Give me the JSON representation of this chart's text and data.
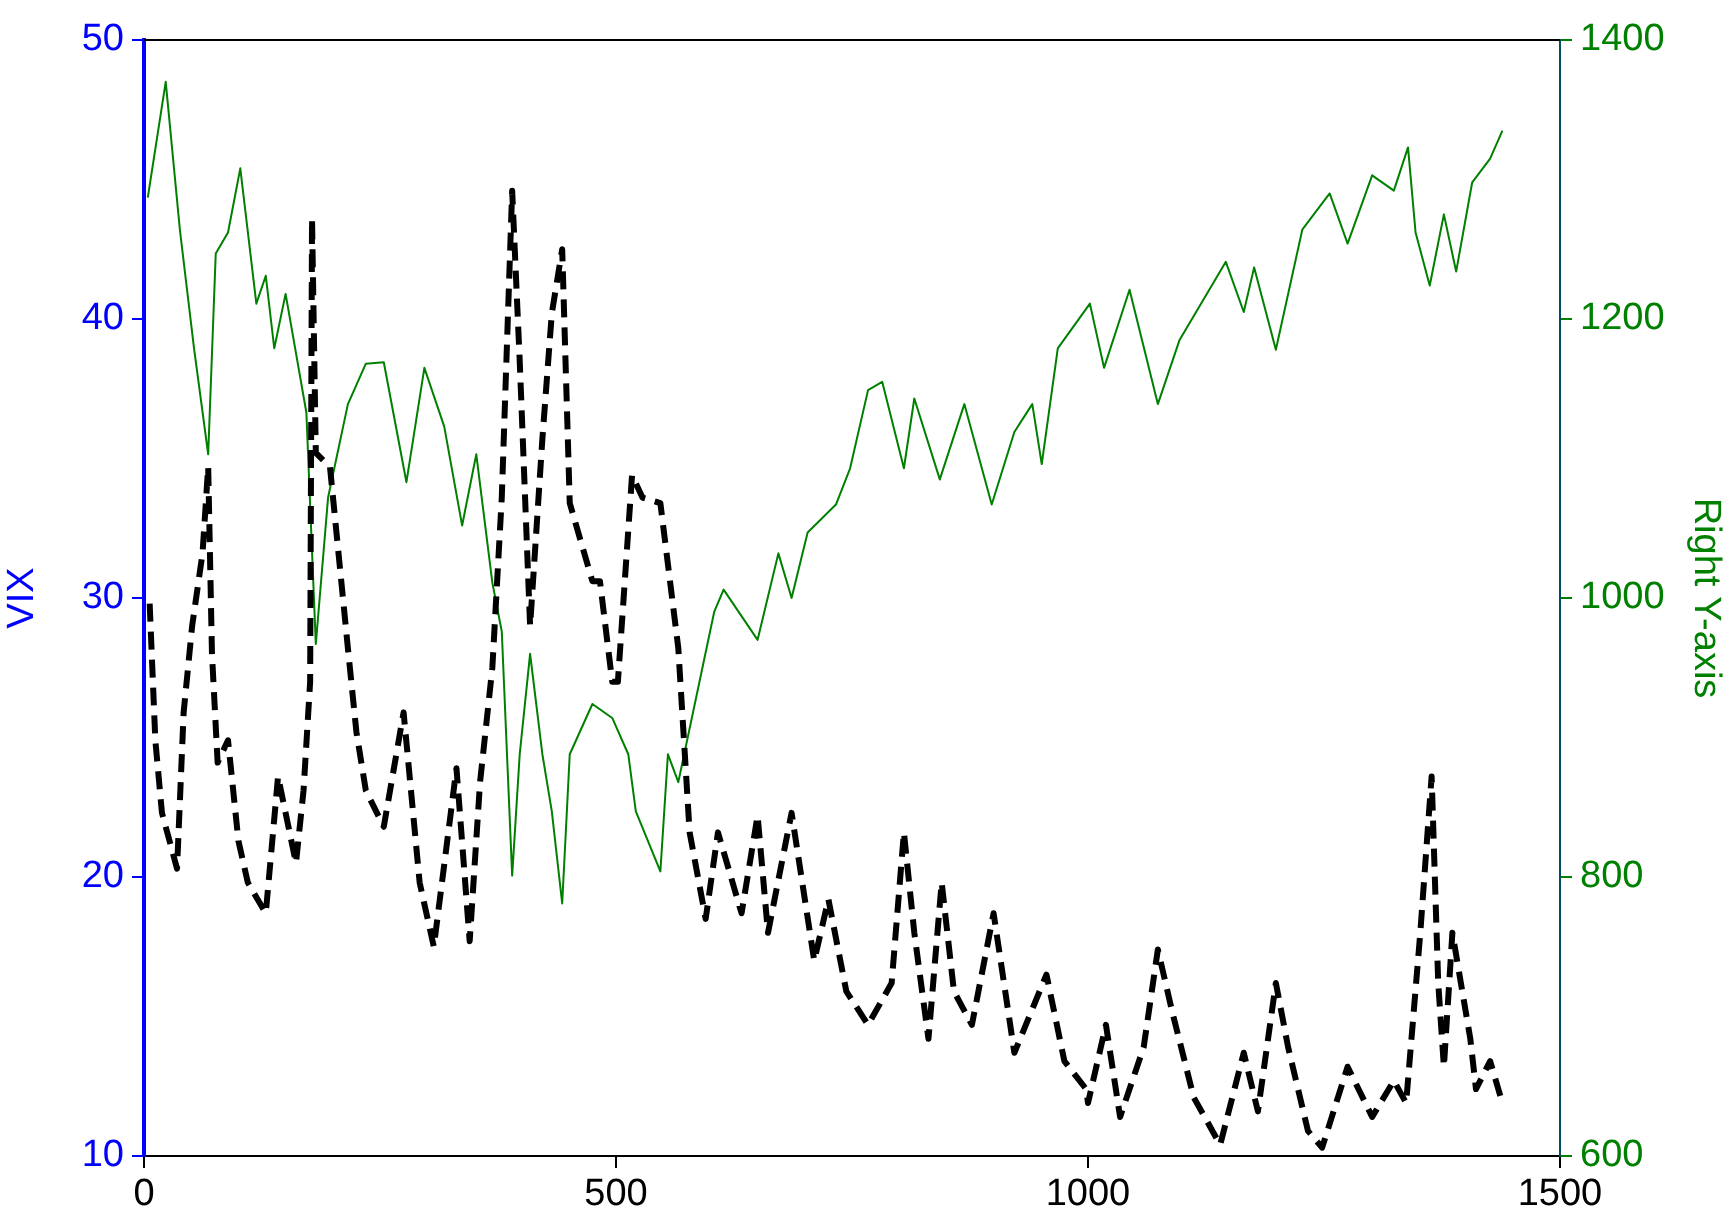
{
  "chart_data": {
    "type": "line",
    "ylabel": "VIX",
    "y2label": "Right Y-axis",
    "xlim": [
      0,
      1500
    ],
    "xticks": [
      0,
      500,
      1000,
      1500
    ],
    "ylim": [
      10,
      50
    ],
    "yticks": [
      10,
      20,
      30,
      40,
      50
    ],
    "y2lim": [
      600,
      1400
    ],
    "y2ticks": [
      600,
      800,
      1000,
      1200,
      1400
    ],
    "grid": false,
    "legend": false,
    "marker": "none",
    "series": [
      {
        "color": "#000000",
        "line_style": "dashed",
        "x": [
          6,
          12,
          19,
          35,
          42,
          51,
          62,
          68,
          72,
          78,
          89,
          100,
          110,
          129,
          142,
          161,
          169,
          176,
          178,
          182,
          197,
          216,
          225,
          235,
          254,
          275,
          292,
          307,
          331,
          345,
          356,
          369,
          379,
          390,
          398,
          409,
          422,
          432,
          443,
          451,
          475,
          483,
          496,
          502,
          517,
          528,
          547,
          566,
          578,
          595,
          608,
          633,
          650,
          661,
          686,
          710,
          725,
          744,
          767,
          792,
          805,
          816,
          831,
          845,
          858,
          877,
          900,
          922,
          956,
          975,
          998,
          1000,
          1019,
          1034,
          1059,
          1074,
          1089,
          1112,
          1140,
          1165,
          1180,
          1199,
          1212,
          1233,
          1248,
          1275,
          1301,
          1324,
          1337,
          1352,
          1364,
          1371,
          1377,
          1386,
          1405,
          1411,
          1426,
          1439
        ],
        "values": [
          29.8,
          24.9,
          22.3,
          20.3,
          25.9,
          29,
          31.6,
          34.7,
          28,
          24.1,
          24.9,
          21.3,
          19.8,
          18.7,
          23.6,
          20.5,
          23.1,
          27,
          43.6,
          35.2,
          34.7,
          28.2,
          25.2,
          23.1,
          21.8,
          25.9,
          19.8,
          17.5,
          23.9,
          17.7,
          23.4,
          27.5,
          33.6,
          44.6,
          38.5,
          29,
          35.7,
          40.2,
          42.5,
          33.4,
          30.6,
          30.6,
          27,
          27,
          34.4,
          33.6,
          33.4,
          28.2,
          21.6,
          18.5,
          21.6,
          18.7,
          22.2,
          18,
          22.3,
          17,
          19.2,
          15.9,
          14.7,
          16.2,
          21.6,
          18,
          14.2,
          19.8,
          15.9,
          14.7,
          18.7,
          13.7,
          16.5,
          13.4,
          12.4,
          11.9,
          14.7,
          11.4,
          13.9,
          17.4,
          15.2,
          12.1,
          10.4,
          13.7,
          11.6,
          16.2,
          13.9,
          10.9,
          10.3,
          13.2,
          11.4,
          12.7,
          11.9,
          18,
          23.6,
          16.2,
          13.2,
          18,
          14.2,
          12.4,
          13.4,
          11.9
        ]
      },
      {
        "color": "#008000",
        "line_style": "solid",
        "axis": "y2",
        "x": [
          4,
          23,
          38,
          53,
          68,
          76,
          89,
          102,
          119,
          129,
          138,
          150,
          172,
          182,
          195,
          216,
          235,
          254,
          278,
          297,
          318,
          337,
          352,
          369,
          379,
          390,
          398,
          409,
          422,
          432,
          443,
          451,
          475,
          496,
          513,
          521,
          547,
          555,
          566,
          604,
          614,
          650,
          672,
          686,
          703,
          733,
          748,
          767,
          782,
          805,
          816,
          843,
          869,
          898,
          922,
          941,
          951,
          968,
          1002,
          1017,
          1044,
          1074,
          1097,
          1146,
          1165,
          1176,
          1199,
          1227,
          1256,
          1275,
          1301,
          1324,
          1339,
          1347,
          1362,
          1377,
          1390,
          1407,
          1426,
          1439
        ],
        "values": [
          1287,
          1370,
          1264,
          1179,
          1103,
          1247,
          1262,
          1308,
          1211,
          1231,
          1179,
          1218,
          1133,
          967,
          1072,
          1139,
          1168,
          1169,
          1083,
          1165,
          1123,
          1052,
          1103,
          1011,
          976,
          801,
          888,
          960,
          888,
          847,
          781,
          888,
          924,
          914,
          888,
          847,
          804,
          888,
          868,
          990,
          1006,
          970,
          1032,
          1000,
          1047,
          1067,
          1093,
          1149,
          1155,
          1093,
          1143,
          1085,
          1139,
          1067,
          1119,
          1139,
          1096,
          1179,
          1211,
          1165,
          1221,
          1139,
          1185,
          1241,
          1205,
          1237,
          1178,
          1264,
          1290,
          1254,
          1303,
          1292,
          1323,
          1262,
          1224,
          1275,
          1234,
          1298,
          1315,
          1335
        ]
      }
    ]
  }
}
